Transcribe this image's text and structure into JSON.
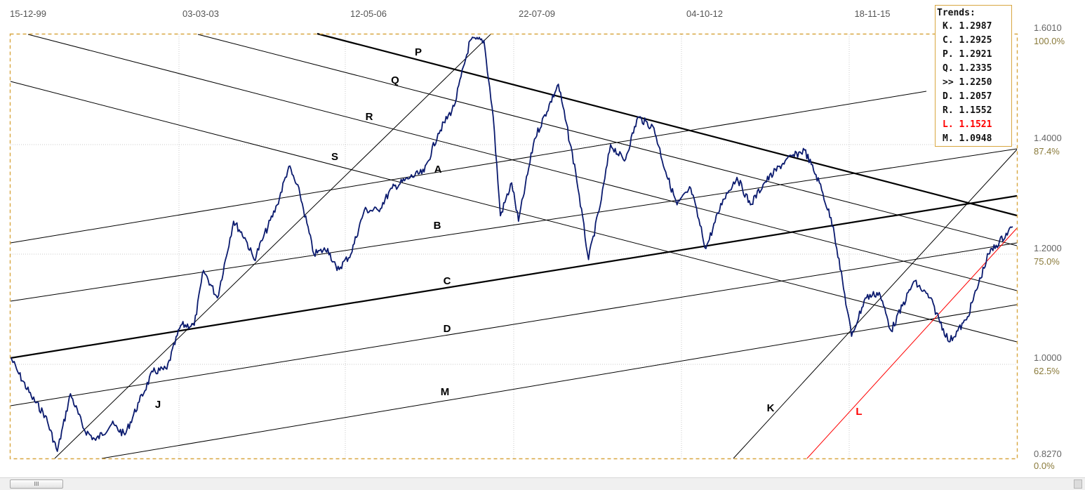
{
  "chart_data": {
    "type": "line",
    "x_tick_labels": [
      "15-12-99",
      "03-03-03",
      "12-05-06",
      "22-07-09",
      "04-10-12",
      "18-11-15"
    ],
    "price_tick_labels": [
      "1.6010",
      "1.4000",
      "1.2000",
      "1.0000",
      "0.8270"
    ],
    "percent_tick_labels": [
      "100.0%",
      "87.4%",
      "75.0%",
      "62.5%",
      "0.0%"
    ],
    "ylim": [
      0.827,
      1.601
    ],
    "log_scale": false,
    "grid": true,
    "series": [
      {
        "color": "#0a1a6e",
        "points": [
          [
            "1999-12-15",
            1.012
          ],
          [
            "2000-02-01",
            0.985
          ],
          [
            "2000-05-01",
            0.94
          ],
          [
            "2000-08-01",
            0.905
          ],
          [
            "2000-10-20",
            0.84
          ],
          [
            "2001-01-15",
            0.945
          ],
          [
            "2001-04-15",
            0.88
          ],
          [
            "2001-07-01",
            0.86
          ],
          [
            "2001-10-15",
            0.89
          ],
          [
            "2002-01-10",
            0.87
          ],
          [
            "2002-04-15",
            0.93
          ],
          [
            "2002-07-15",
            0.985
          ],
          [
            "2002-10-15",
            0.99
          ],
          [
            "2003-01-15",
            1.07
          ],
          [
            "2003-04-15",
            1.07
          ],
          [
            "2003-06-15",
            1.17
          ],
          [
            "2003-09-15",
            1.12
          ],
          [
            "2003-12-31",
            1.26
          ],
          [
            "2004-03-15",
            1.23
          ],
          [
            "2004-05-15",
            1.19
          ],
          [
            "2004-07-15",
            1.23
          ],
          [
            "2004-10-15",
            1.29
          ],
          [
            "2004-12-31",
            1.36
          ],
          [
            "2005-03-15",
            1.31
          ],
          [
            "2005-06-15",
            1.2
          ],
          [
            "2005-09-15",
            1.21
          ],
          [
            "2005-11-15",
            1.17
          ],
          [
            "2006-02-15",
            1.2
          ],
          [
            "2006-05-15",
            1.28
          ],
          [
            "2006-08-15",
            1.28
          ],
          [
            "2006-11-15",
            1.32
          ],
          [
            "2007-03-15",
            1.34
          ],
          [
            "2007-06-15",
            1.35
          ],
          [
            "2007-09-15",
            1.42
          ],
          [
            "2007-12-31",
            1.47
          ],
          [
            "2008-04-15",
            1.59
          ],
          [
            "2008-07-15",
            1.59
          ],
          [
            "2008-09-15",
            1.45
          ],
          [
            "2008-11-01",
            1.27
          ],
          [
            "2009-01-15",
            1.33
          ],
          [
            "2009-03-01",
            1.26
          ],
          [
            "2009-06-15",
            1.41
          ],
          [
            "2009-11-20",
            1.51
          ],
          [
            "2010-03-15",
            1.35
          ],
          [
            "2010-06-08",
            1.19
          ],
          [
            "2010-09-01",
            1.3
          ],
          [
            "2010-11-01",
            1.4
          ],
          [
            "2011-02-01",
            1.37
          ],
          [
            "2011-05-01",
            1.45
          ],
          [
            "2011-08-15",
            1.43
          ],
          [
            "2011-11-01",
            1.35
          ],
          [
            "2012-01-15",
            1.29
          ],
          [
            "2012-04-15",
            1.32
          ],
          [
            "2012-07-24",
            1.21
          ],
          [
            "2012-11-15",
            1.3
          ],
          [
            "2013-02-15",
            1.34
          ],
          [
            "2013-05-15",
            1.29
          ],
          [
            "2013-08-15",
            1.33
          ],
          [
            "2013-12-31",
            1.37
          ],
          [
            "2014-05-08",
            1.39
          ],
          [
            "2014-08-15",
            1.33
          ],
          [
            "2014-11-15",
            1.25
          ],
          [
            "2015-03-16",
            1.05
          ],
          [
            "2015-06-15",
            1.12
          ],
          [
            "2015-09-15",
            1.13
          ],
          [
            "2015-12-03",
            1.06
          ],
          [
            "2016-05-01",
            1.15
          ],
          [
            "2016-08-15",
            1.12
          ],
          [
            "2016-12-20",
            1.04
          ],
          [
            "2017-04-15",
            1.08
          ],
          [
            "2017-09-08",
            1.2
          ],
          [
            "2018-02-15",
            1.25
          ]
        ]
      }
    ],
    "trend_lines": [
      {
        "label": "K",
        "color": "#000000"
      },
      {
        "label": "L",
        "color": "#ff0000"
      },
      {
        "label": "P",
        "color": "#000000"
      },
      {
        "label": "Q",
        "color": "#000000"
      },
      {
        "label": "R",
        "color": "#000000"
      },
      {
        "label": "S",
        "color": "#000000"
      },
      {
        "label": "A",
        "color": "#000000"
      },
      {
        "label": "B",
        "color": "#000000"
      },
      {
        "label": "C",
        "color": "#000000"
      },
      {
        "label": "D",
        "color": "#000000"
      },
      {
        "label": "M",
        "color": "#000000"
      },
      {
        "label": "J",
        "color": "#000000"
      }
    ]
  },
  "legend": {
    "title": "Trends:",
    "rows": [
      {
        "label": "K.",
        "value": "1.2987",
        "color": "#111111"
      },
      {
        "label": "C.",
        "value": "1.2925",
        "color": "#111111"
      },
      {
        "label": "P.",
        "value": "1.2921",
        "color": "#111111"
      },
      {
        "label": "Q.",
        "value": "1.2335",
        "color": "#111111"
      },
      {
        "label": ">>",
        "value": "1.2250",
        "color": "#111111"
      },
      {
        "label": "D.",
        "value": "1.2057",
        "color": "#111111"
      },
      {
        "label": "R.",
        "value": "1.1552",
        "color": "#111111"
      },
      {
        "label": "L.",
        "value": "1.1521",
        "color": "#ff0000"
      },
      {
        "label": "M.",
        "value": "1.0948",
        "color": "#111111"
      }
    ]
  },
  "scrollbar": {
    "grip": "III"
  }
}
